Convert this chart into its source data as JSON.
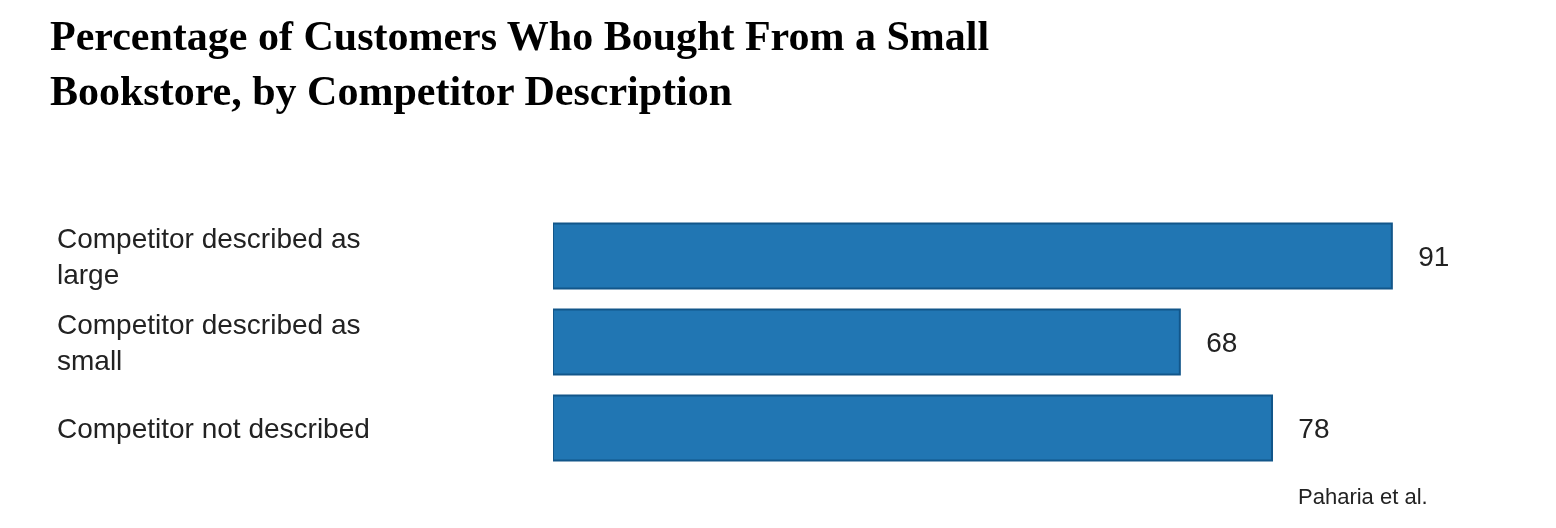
{
  "chart_data": {
    "type": "bar",
    "orientation": "horizontal",
    "title": "Percentage of Customers Who Bought From a Small Bookstore, by Competitor Description",
    "categories": [
      "Competitor described as large",
      "Competitor described as small",
      "Competitor not described"
    ],
    "values": [
      91,
      68,
      78
    ],
    "color": "#2176b3",
    "data_labels": true,
    "tick_labels": "y",
    "legend": false,
    "annotations": [
      "Paharia et al."
    ]
  }
}
